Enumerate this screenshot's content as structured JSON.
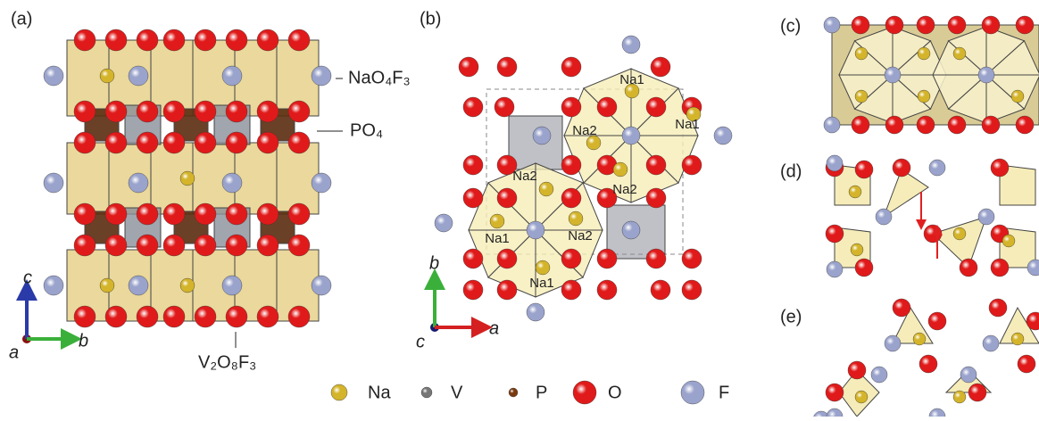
{
  "panels": [
    {
      "label": "(a)",
      "annotations": [
        "NaO₄F₃",
        "PO₄",
        "V₂O₈F₃"
      ],
      "axes": [
        "c",
        "b",
        "a"
      ]
    },
    {
      "label": "(b)",
      "site_labels": [
        "Na1",
        "Na1",
        "Na1",
        "Na1",
        "Na2",
        "Na2",
        "Na2",
        "Na2"
      ],
      "axes": [
        "b",
        "a",
        "c"
      ]
    },
    {
      "label": "(c)"
    },
    {
      "label": "(d)"
    },
    {
      "label": "(e)"
    }
  ],
  "legend": [
    {
      "label": "Na",
      "color": "#d4b42a"
    },
    {
      "label": "V",
      "color": "#777777"
    },
    {
      "label": "P",
      "color": "#7a3a10"
    },
    {
      "label": "O",
      "color": "#e01a1a"
    },
    {
      "label": "F",
      "color": "#9aa3cc"
    }
  ]
}
